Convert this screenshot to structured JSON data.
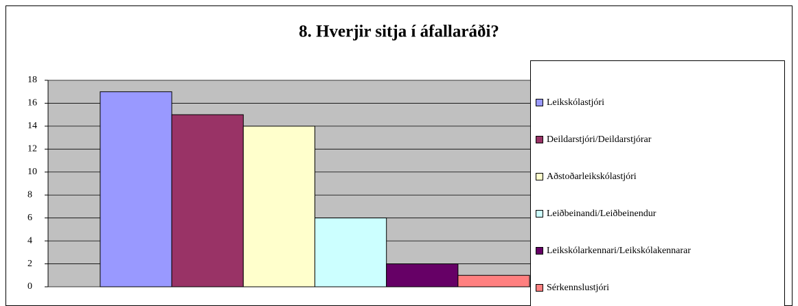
{
  "chart_data": {
    "type": "bar",
    "title": "8. Hverjir sitja í áfallaráði?",
    "categories": [
      null
    ],
    "series": [
      {
        "name": "Leikskólastjóri",
        "color": "#9999ff",
        "values": [
          17
        ]
      },
      {
        "name": "Deildarstjóri/Deildarstjórar",
        "color": "#993366",
        "values": [
          15
        ]
      },
      {
        "name": "Aðstoðarleikskólastjóri",
        "color": "#ffffcc",
        "values": [
          14
        ]
      },
      {
        "name": "Leiðbeinandi/Leiðbeinendur",
        "color": "#ccffff",
        "values": [
          6
        ]
      },
      {
        "name": "Leikskólarkennari/Leikskólakennarar",
        "color": "#660066",
        "values": [
          2
        ]
      },
      {
        "name": "Sérkennslustjóri",
        "color": "#ff8080",
        "values": [
          1
        ]
      }
    ],
    "ylim": [
      0,
      18
    ],
    "yticks": [
      0,
      2,
      4,
      6,
      8,
      10,
      12,
      14,
      16,
      18
    ],
    "grid": true,
    "legend": "right"
  }
}
